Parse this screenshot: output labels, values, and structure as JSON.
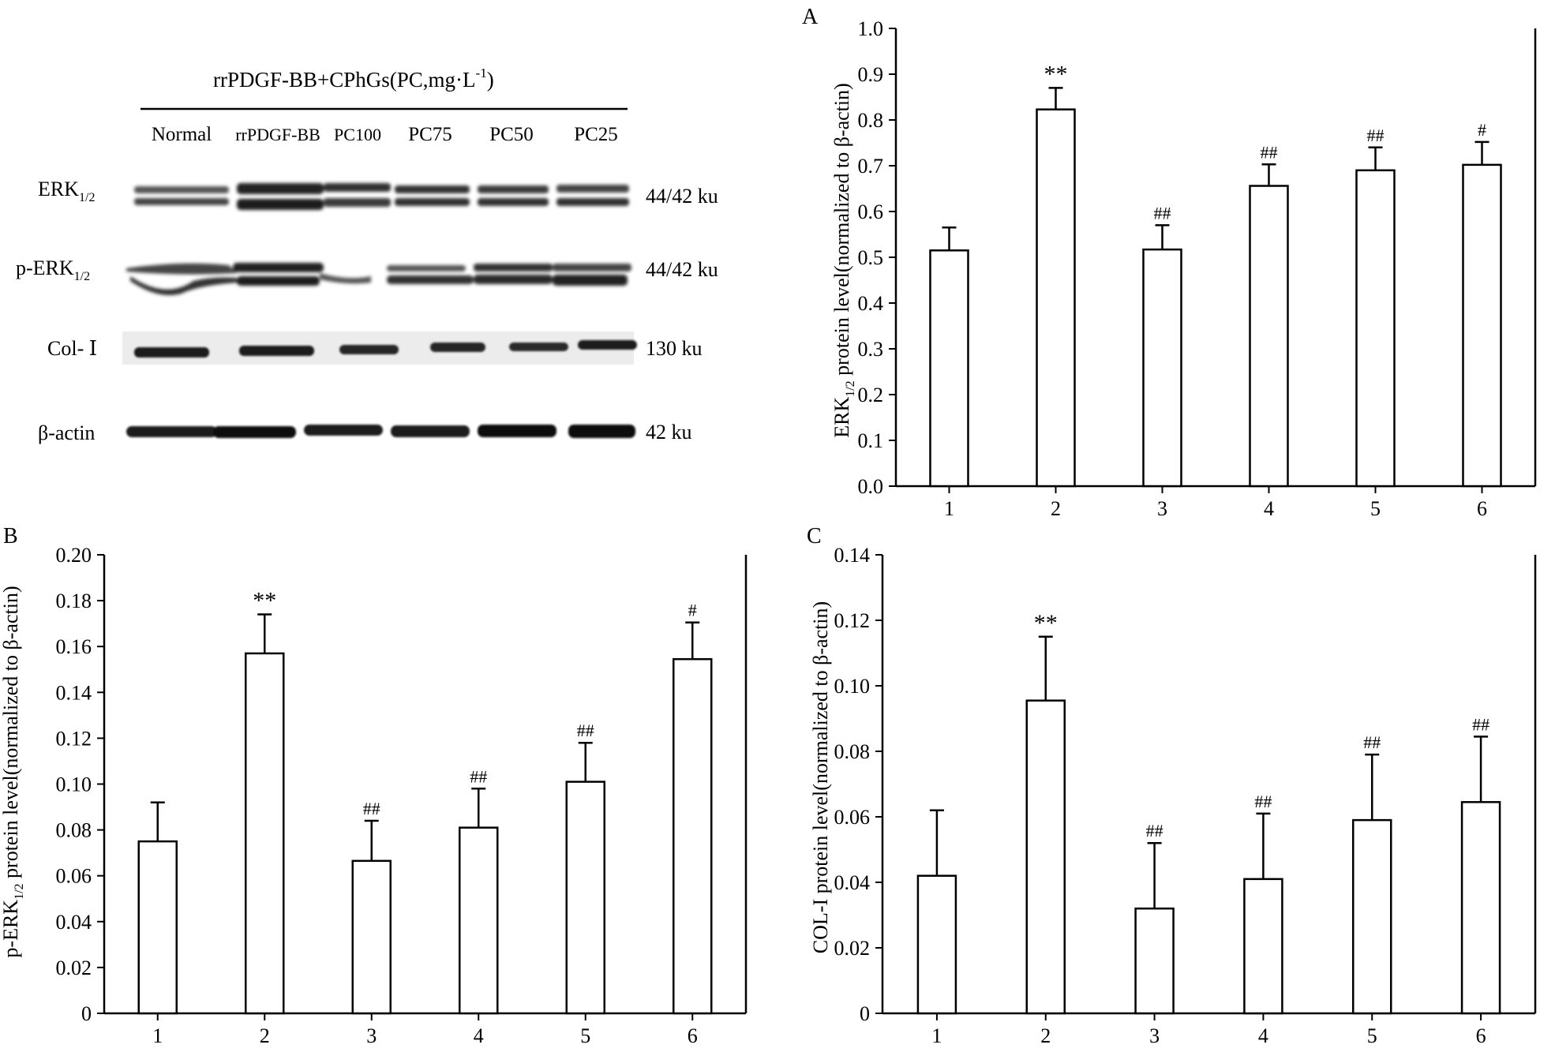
{
  "blot": {
    "header": "rrPDGF-BB+CPhGs(PC,mg·L",
    "header_sup": "-1",
    "header_end": ")",
    "lanes": [
      "Normal",
      "rrPDGF-BB",
      "PC100",
      "PC75",
      "PC50",
      "PC25"
    ],
    "rows": [
      {
        "label": "ERK",
        "sub": "1/2",
        "size": "44/42 ku"
      },
      {
        "label": "p-ERK",
        "sub": "1/2",
        "size": "44/42 ku"
      },
      {
        "label": "Col- Ⅰ",
        "sub": "",
        "size": "130 ku"
      },
      {
        "label": "β-actin",
        "sub": "",
        "size": "42 ku"
      }
    ]
  },
  "chart_data": [
    {
      "type": "bar",
      "panel": "A",
      "categories": [
        "1",
        "2",
        "3",
        "4",
        "5",
        "6"
      ],
      "values": [
        0.515,
        0.823,
        0.517,
        0.656,
        0.69,
        0.702
      ],
      "errors": [
        0.05,
        0.047,
        0.053,
        0.047,
        0.05,
        0.05
      ],
      "annotations": [
        "",
        "**",
        "##",
        "##",
        "##",
        "#"
      ],
      "ylabel": "ERK",
      "ylabel_sub": "1/2",
      "ylabel_rest": " protein level(normalized to β-actin)",
      "ylim": [
        0,
        1.0
      ],
      "yticks": [
        "0.0",
        "0.1",
        "0.2",
        "0.3",
        "0.4",
        "0.5",
        "0.6",
        "0.7",
        "0.8",
        "0.9",
        "1.0"
      ]
    },
    {
      "type": "bar",
      "panel": "B",
      "categories": [
        "1",
        "2",
        "3",
        "4",
        "5",
        "6"
      ],
      "values": [
        0.075,
        0.157,
        0.0665,
        0.081,
        0.101,
        0.1545
      ],
      "errors": [
        0.017,
        0.017,
        0.0175,
        0.017,
        0.017,
        0.016
      ],
      "annotations": [
        "",
        "**",
        "##",
        "##",
        "##",
        "#"
      ],
      "ylabel": "p-ERK",
      "ylabel_sub": "1/2",
      "ylabel_rest": " protein level(normalized to β-actin)",
      "ylim": [
        0,
        0.2
      ],
      "yticks": [
        "0",
        "0.02",
        "0.04",
        "0.06",
        "0.08",
        "0.10",
        "0.12",
        "0.14",
        "0.16",
        "0.18",
        "0.20"
      ]
    },
    {
      "type": "bar",
      "panel": "C",
      "categories": [
        "1",
        "2",
        "3",
        "4",
        "5",
        "6"
      ],
      "values": [
        0.042,
        0.0955,
        0.032,
        0.041,
        0.059,
        0.0645
      ],
      "errors": [
        0.02,
        0.0195,
        0.02,
        0.02,
        0.02,
        0.02
      ],
      "annotations": [
        "",
        "**",
        "##",
        "##",
        "##",
        "##"
      ],
      "ylabel": "COL-I protein level(normalized to β-actin)",
      "ylabel_sub": "",
      "ylabel_rest": "",
      "ylim": [
        0,
        0.14
      ],
      "yticks": [
        "0",
        "0.02",
        "0.04",
        "0.06",
        "0.08",
        "0.10",
        "0.12",
        "0.14"
      ]
    }
  ]
}
